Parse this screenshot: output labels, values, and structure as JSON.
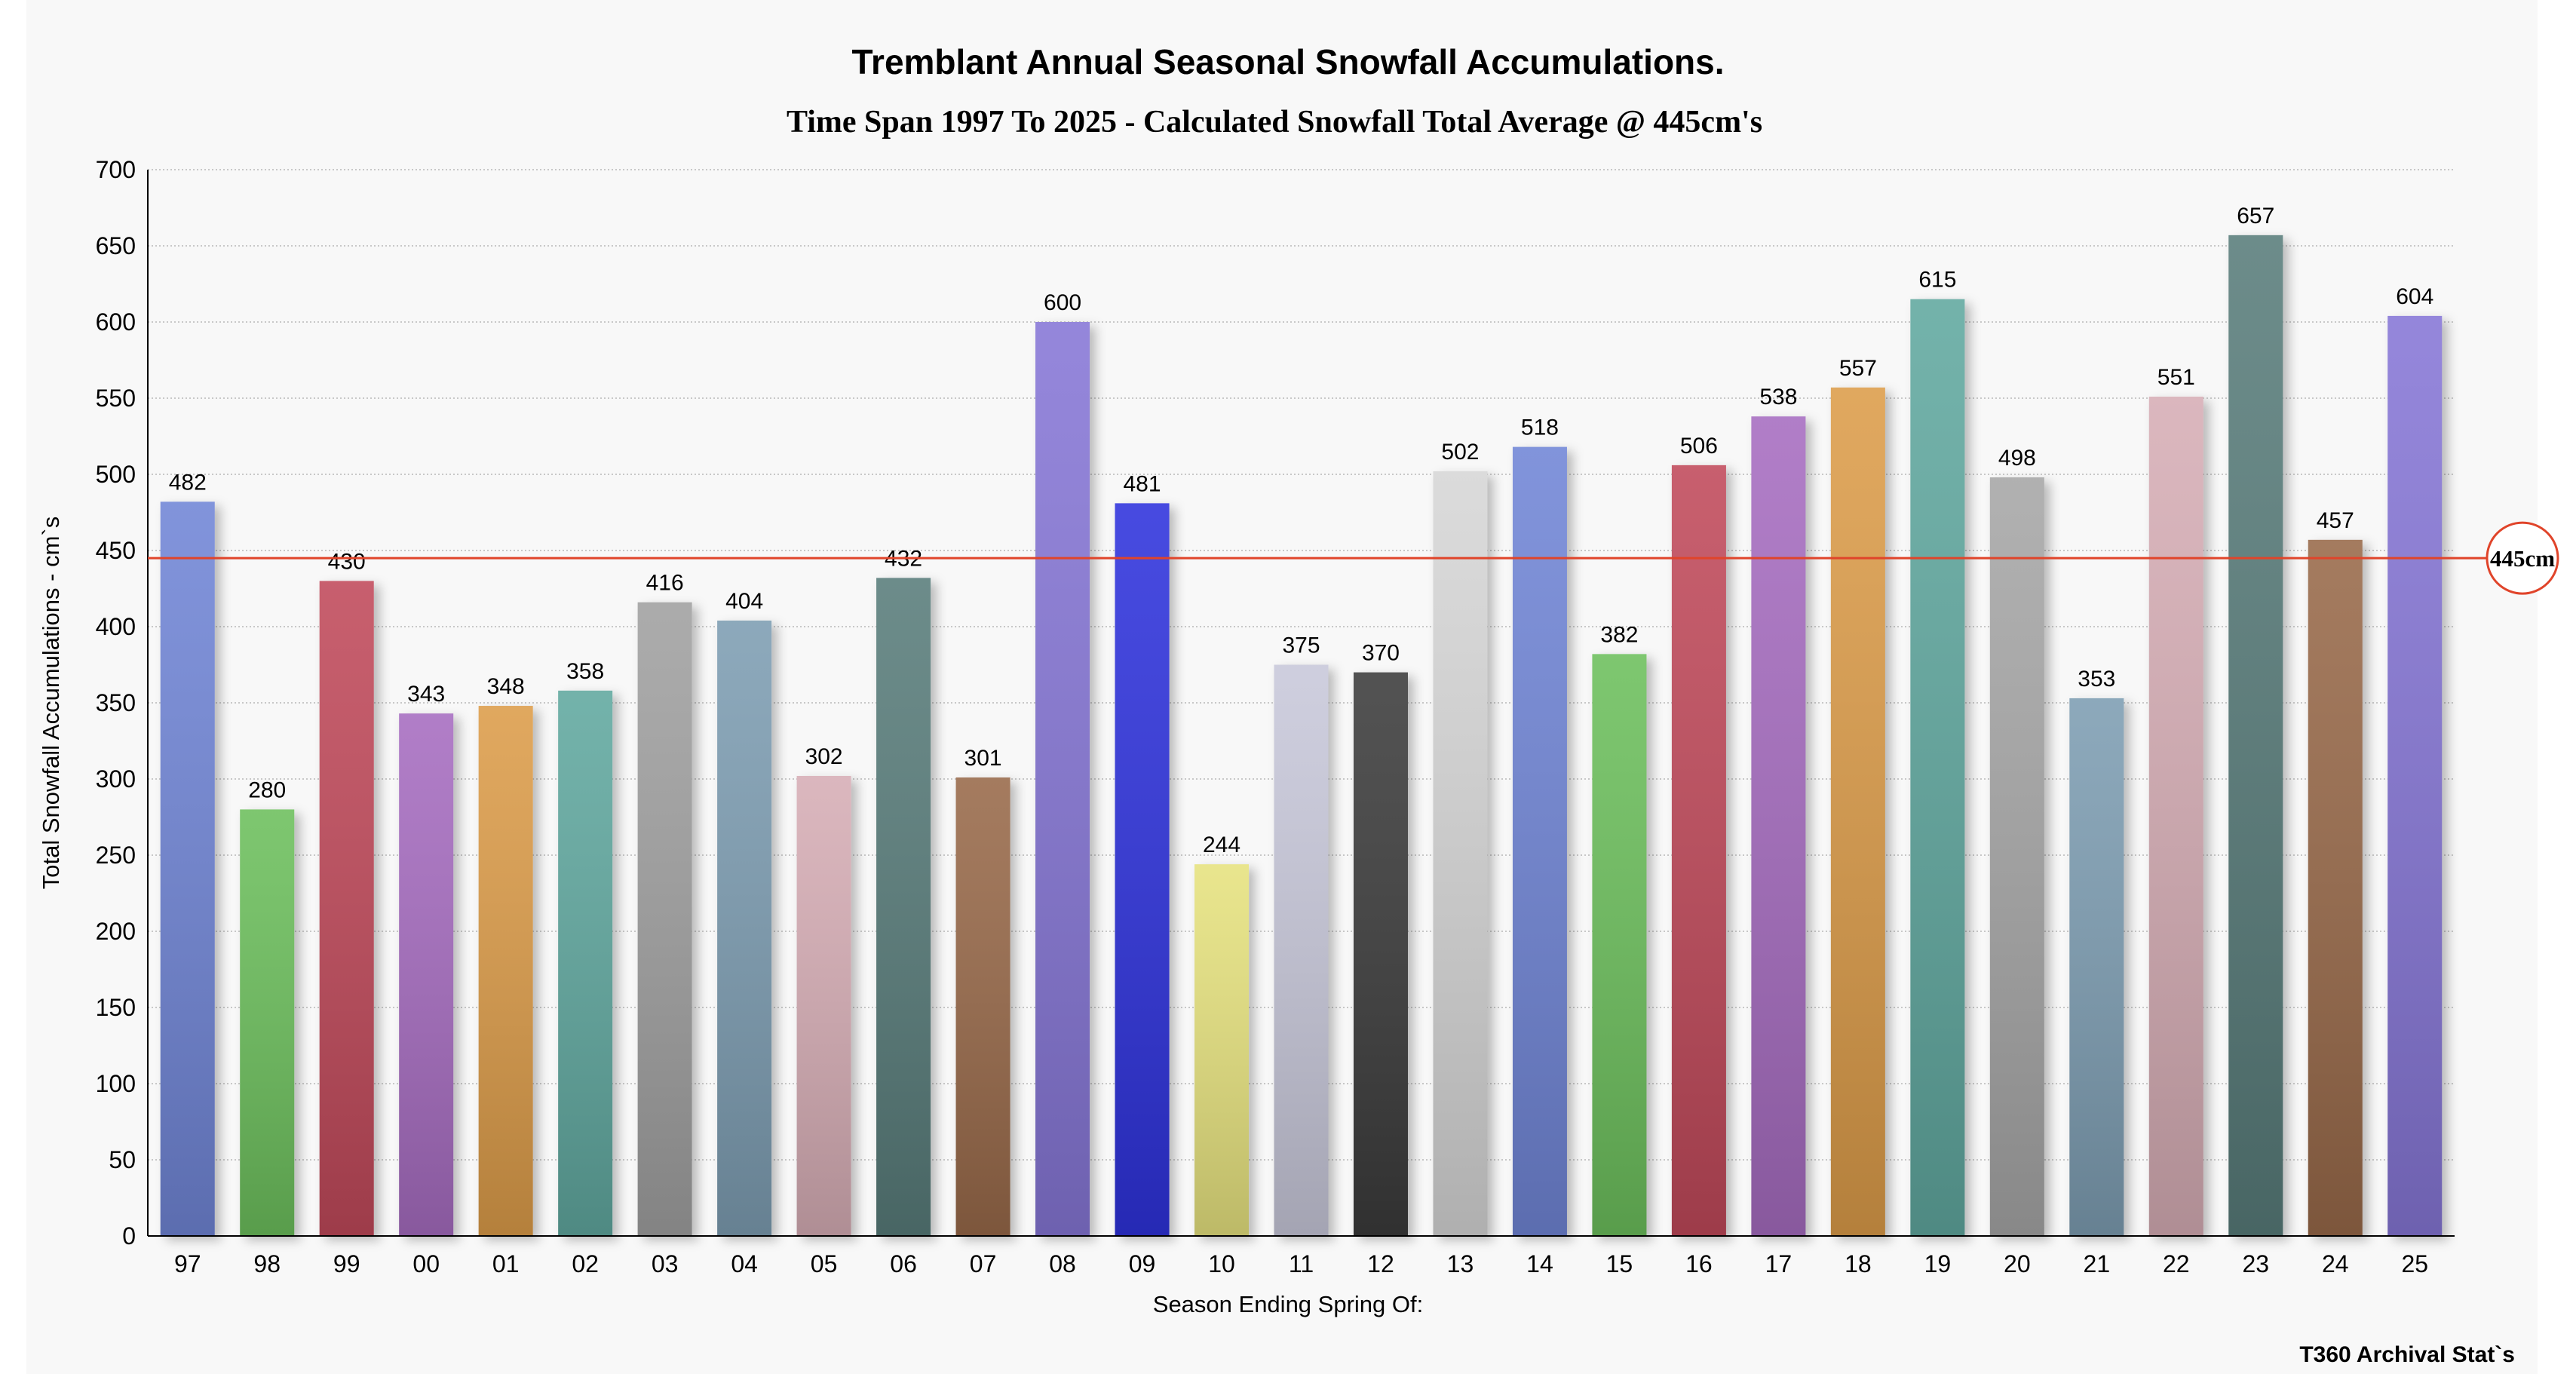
{
  "chart_data": {
    "type": "bar",
    "title": "Tremblant Annual Seasonal Snowfall Accumulations.",
    "subtitle": "Time Span 1997 To 2025 - Calculated Snowfall Total Average @ 445cm's",
    "xlabel": "Season Ending Spring Of:",
    "ylabel": "Total Snowfall Accumulations - cm`s",
    "ylim": [
      0,
      700
    ],
    "yticks": [
      0,
      50,
      100,
      150,
      200,
      250,
      300,
      350,
      400,
      450,
      500,
      550,
      600,
      650,
      700
    ],
    "grid": true,
    "categories": [
      "97",
      "98",
      "99",
      "00",
      "01",
      "02",
      "03",
      "04",
      "05",
      "06",
      "07",
      "08",
      "09",
      "10",
      "11",
      "12",
      "13",
      "14",
      "15",
      "16",
      "17",
      "18",
      "19",
      "20",
      "21",
      "22",
      "23",
      "24",
      "25"
    ],
    "values": [
      482,
      280,
      430,
      343,
      348,
      358,
      416,
      404,
      302,
      432,
      301,
      600,
      481,
      244,
      375,
      370,
      502,
      518,
      382,
      506,
      538,
      557,
      615,
      498,
      353,
      551,
      657,
      457,
      604
    ],
    "colors": [
      "#7085d6",
      "#6cbf5c",
      "#c0485a",
      "#a66cc0",
      "#dc9c4a",
      "#60a89f",
      "#a0a0a0",
      "#7d9db2",
      "#d6adb5",
      "#587c7a",
      "#98694a",
      "#8676d6",
      "#2e30dc",
      "#e6e27e",
      "#c8c8da",
      "#3a3a3a",
      "#d6d6d6",
      "#7085d6",
      "#6cbf5c",
      "#c0485a",
      "#a66cc0",
      "#dc9c4a",
      "#60a89f",
      "#a6a6a6",
      "#7d9db2",
      "#d6adb5",
      "#587c7a",
      "#98694a",
      "#8676d6"
    ],
    "average": {
      "value": 445,
      "label": "445cm",
      "color": "#e0442a"
    },
    "footer": "T360 Archival Stat`s"
  }
}
